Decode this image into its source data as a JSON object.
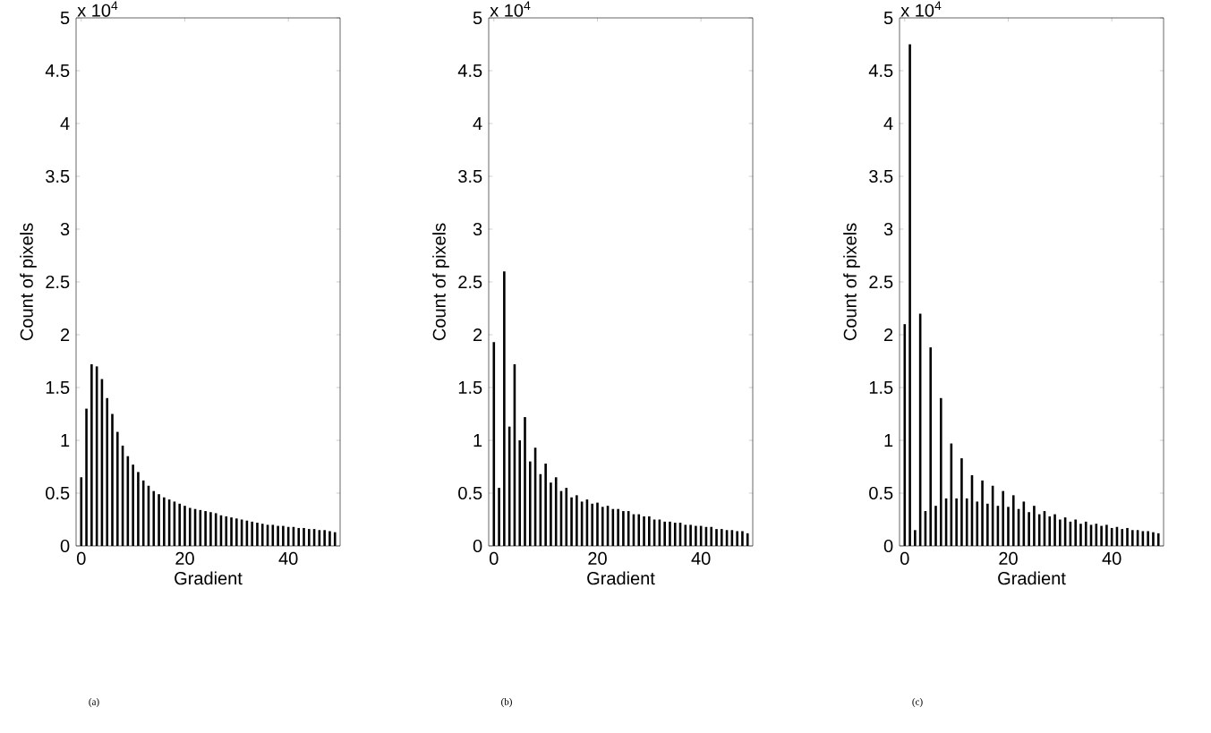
{
  "chart_data": [
    {
      "type": "bar",
      "xlabel": "Gradient",
      "ylabel": "Count of pixels",
      "color": "#000000",
      "xlim": [
        -1,
        50
      ],
      "xticks": [
        0,
        20,
        40
      ],
      "ylim": [
        0,
        5
      ],
      "yticks": [
        0,
        0.5,
        1,
        1.5,
        2,
        2.5,
        3,
        3.5,
        4,
        4.5,
        5
      ],
      "annotations": [
        "x 10$^{4}$",
        "(a)"
      ],
      "x": [
        0,
        1,
        2,
        3,
        4,
        5,
        6,
        7,
        8,
        9,
        10,
        11,
        12,
        13,
        14,
        15,
        16,
        17,
        18,
        19,
        20,
        21,
        22,
        23,
        24,
        25,
        26,
        27,
        28,
        29,
        30,
        31,
        32,
        33,
        34,
        35,
        36,
        37,
        38,
        39,
        40,
        41,
        42,
        43,
        44,
        45,
        46,
        47,
        48,
        49
      ],
      "values": [
        0.65,
        1.3,
        1.72,
        1.7,
        1.58,
        1.4,
        1.25,
        1.08,
        0.95,
        0.85,
        0.77,
        0.7,
        0.62,
        0.57,
        0.52,
        0.49,
        0.46,
        0.44,
        0.42,
        0.4,
        0.38,
        0.36,
        0.35,
        0.34,
        0.33,
        0.32,
        0.31,
        0.29,
        0.28,
        0.27,
        0.26,
        0.25,
        0.24,
        0.23,
        0.22,
        0.21,
        0.2,
        0.2,
        0.19,
        0.19,
        0.18,
        0.18,
        0.17,
        0.17,
        0.16,
        0.16,
        0.15,
        0.15,
        0.14,
        0.13
      ]
    },
    {
      "type": "bar",
      "xlabel": "Gradient",
      "ylabel": "Count of pixels",
      "color": "#000000",
      "xlim": [
        -1,
        50
      ],
      "xticks": [
        0,
        20,
        40
      ],
      "ylim": [
        0,
        5
      ],
      "yticks": [
        0,
        0.5,
        1,
        1.5,
        2,
        2.5,
        3,
        3.5,
        4,
        4.5,
        5
      ],
      "annotations": [
        "x 10$^{4}$",
        "(b)"
      ],
      "x": [
        0,
        1,
        2,
        3,
        4,
        5,
        6,
        7,
        8,
        9,
        10,
        11,
        12,
        13,
        14,
        15,
        16,
        17,
        18,
        19,
        20,
        21,
        22,
        23,
        24,
        25,
        26,
        27,
        28,
        29,
        30,
        31,
        32,
        33,
        34,
        35,
        36,
        37,
        38,
        39,
        40,
        41,
        42,
        43,
        44,
        45,
        46,
        47,
        48,
        49
      ],
      "values": [
        1.93,
        0.55,
        2.6,
        1.13,
        1.72,
        1.0,
        1.22,
        0.8,
        0.93,
        0.68,
        0.78,
        0.6,
        0.65,
        0.52,
        0.55,
        0.46,
        0.48,
        0.42,
        0.44,
        0.4,
        0.41,
        0.37,
        0.38,
        0.35,
        0.35,
        0.33,
        0.33,
        0.3,
        0.3,
        0.28,
        0.28,
        0.25,
        0.25,
        0.23,
        0.23,
        0.22,
        0.22,
        0.2,
        0.2,
        0.19,
        0.19,
        0.18,
        0.18,
        0.16,
        0.16,
        0.15,
        0.15,
        0.14,
        0.14,
        0.12
      ]
    },
    {
      "type": "bar",
      "xlabel": "Gradient",
      "ylabel": "Count of pixels",
      "color": "#000000",
      "xlim": [
        -1,
        50
      ],
      "xticks": [
        0,
        20,
        40
      ],
      "ylim": [
        0,
        5
      ],
      "yticks": [
        0,
        0.5,
        1,
        1.5,
        2,
        2.5,
        3,
        3.5,
        4,
        4.5,
        5
      ],
      "annotations": [
        "x 10$^{4}$",
        "(c)"
      ],
      "x": [
        0,
        1,
        2,
        3,
        4,
        5,
        6,
        7,
        8,
        9,
        10,
        11,
        12,
        13,
        14,
        15,
        16,
        17,
        18,
        19,
        20,
        21,
        22,
        23,
        24,
        25,
        26,
        27,
        28,
        29,
        30,
        31,
        32,
        33,
        34,
        35,
        36,
        37,
        38,
        39,
        40,
        41,
        42,
        43,
        44,
        45,
        46,
        47,
        48,
        49
      ],
      "values": [
        2.1,
        4.75,
        0.15,
        2.2,
        0.33,
        1.88,
        0.38,
        1.4,
        0.45,
        0.97,
        0.45,
        0.83,
        0.45,
        0.67,
        0.42,
        0.62,
        0.4,
        0.57,
        0.38,
        0.52,
        0.37,
        0.48,
        0.35,
        0.42,
        0.32,
        0.38,
        0.3,
        0.33,
        0.28,
        0.3,
        0.25,
        0.27,
        0.23,
        0.25,
        0.21,
        0.23,
        0.2,
        0.21,
        0.19,
        0.2,
        0.17,
        0.18,
        0.16,
        0.17,
        0.15,
        0.15,
        0.14,
        0.14,
        0.13,
        0.12
      ]
    }
  ]
}
